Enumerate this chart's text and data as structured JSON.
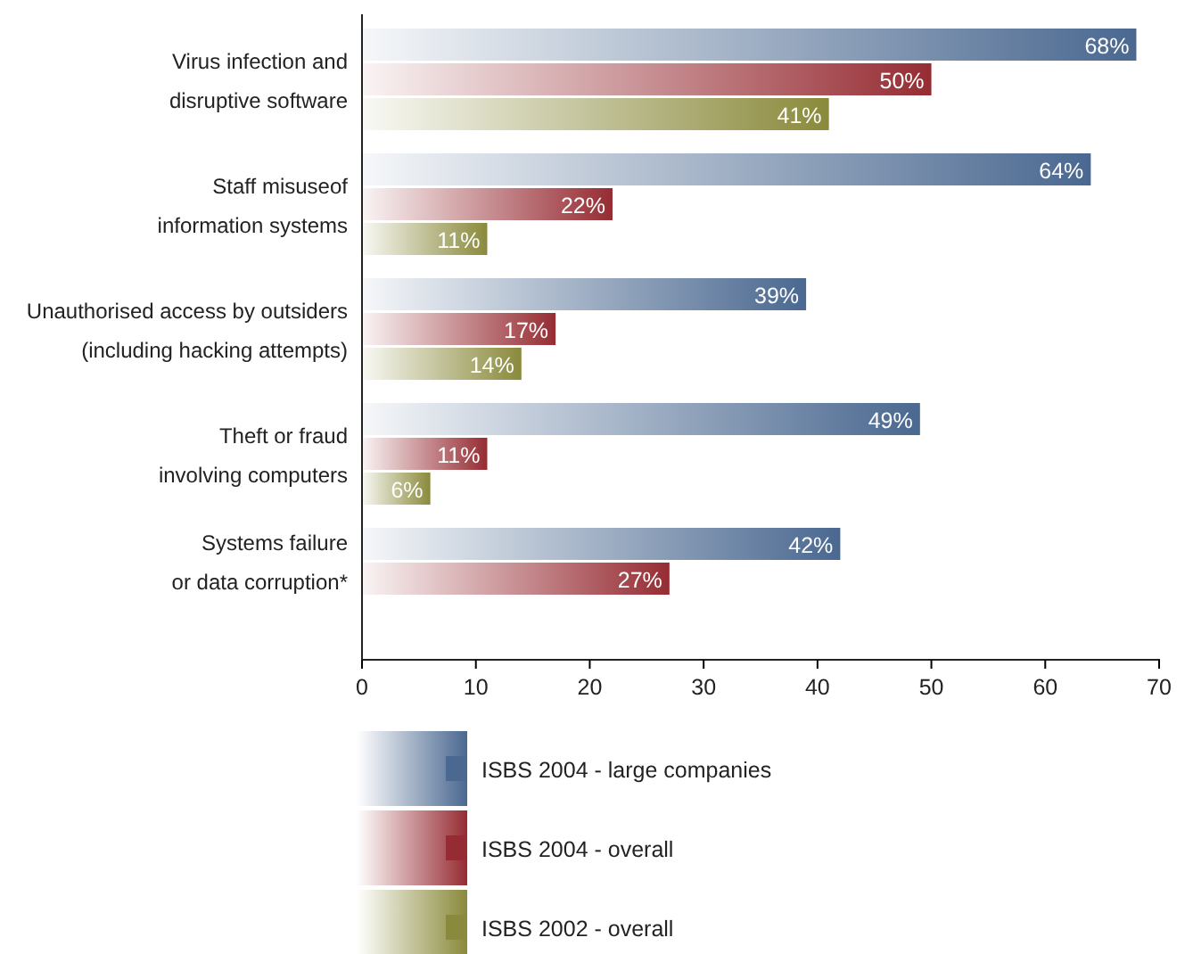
{
  "chart_data": {
    "type": "bar",
    "orientation": "horizontal",
    "categories": [
      "Virus infection and\ndisruptive software",
      "Staff misuseof\ninformation systems",
      "Unauthorised access by outsiders\n(including hacking attempts)",
      "Theft or fraud\ninvolving computers",
      "Systems failure\nor data corruption*"
    ],
    "series": [
      {
        "name": "ISBS 2004 - large companies",
        "color": "#4a6890",
        "values": [
          68,
          64,
          39,
          49,
          42
        ],
        "value_labels": [
          "68%",
          "64%",
          "39%",
          "49%",
          "42%"
        ]
      },
      {
        "name": "ISBS 2004 - overall",
        "color": "#962c33",
        "values": [
          50,
          22,
          17,
          11,
          27
        ],
        "value_labels": [
          "50%",
          "22%",
          "17%",
          "11%",
          "27%"
        ]
      },
      {
        "name": "ISBS 2002 - overall",
        "color": "#8a8a3c",
        "values": [
          41,
          11,
          14,
          6,
          null
        ],
        "value_labels": [
          "41%",
          "11%",
          "14%",
          "6%",
          null
        ]
      }
    ],
    "xlim": [
      0,
      70
    ],
    "xticks": [
      0,
      10,
      20,
      30,
      40,
      50,
      60,
      70
    ],
    "grid": false,
    "legend": "bottom"
  }
}
